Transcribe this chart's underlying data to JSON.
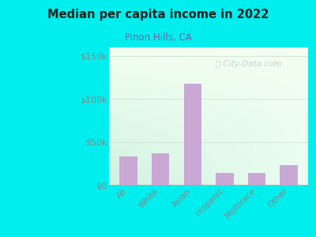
{
  "title": "Median per capita income in 2022",
  "subtitle": "Pinon Hills, CA",
  "categories": [
    "All",
    "White",
    "Asian",
    "Hispanic",
    "Multirace",
    "Other"
  ],
  "values": [
    33000,
    37000,
    118000,
    14000,
    14000,
    23000
  ],
  "bar_color": "#c9a8d4",
  "background_outer": "#00eeee",
  "title_color": "#222222",
  "subtitle_color": "#7b5ea7",
  "axis_color": "#aaaaaa",
  "tick_color": "#888888",
  "ylim": [
    0,
    160000
  ],
  "yticks": [
    0,
    50000,
    100000,
    150000
  ],
  "ytick_labels": [
    "$0",
    "$50k",
    "$100k",
    "$150k"
  ],
  "watermark": "ⓘ City-Data.com",
  "watermark_color": "#bbcccc"
}
